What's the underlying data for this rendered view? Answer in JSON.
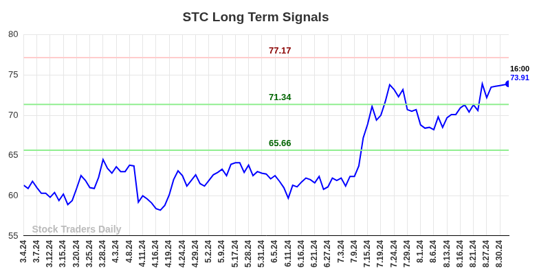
{
  "chart_data": {
    "type": "line",
    "title": "STC Long Term Signals",
    "watermark": "Stock Traders Daily",
    "last_point_label": "16:00",
    "color": "#0000ff",
    "marker": "circle",
    "grid": true,
    "ylim": [
      55,
      80
    ],
    "yticks": [
      55,
      60,
      65,
      70,
      75,
      80
    ],
    "annotations": [
      {
        "value": 77.17,
        "label": "77.17",
        "color": "#ffcccc",
        "text_color": "#8b0000"
      },
      {
        "value": 71.34,
        "label": "71.34",
        "color": "#90ee90",
        "text_color": "#006400"
      },
      {
        "value": 65.66,
        "label": "65.66",
        "color": "#90ee90",
        "text_color": "#006400"
      }
    ],
    "categories": [
      "3.4.24",
      null,
      null,
      "3.7.24",
      null,
      null,
      "3.12.24",
      null,
      null,
      "3.15.24",
      null,
      null,
      "3.20.24",
      null,
      null,
      "3.25.24",
      null,
      null,
      "3.28.24",
      null,
      null,
      "4.3.24",
      null,
      null,
      "4.8.24",
      null,
      null,
      "4.11.24",
      null,
      null,
      "4.16.24",
      null,
      null,
      "4.19.24",
      null,
      null,
      "4.24.24",
      null,
      null,
      "4.29.24",
      null,
      null,
      "5.2.24",
      null,
      null,
      "5.9.24",
      null,
      null,
      "5.17.24",
      null,
      null,
      "5.28.24",
      null,
      null,
      "5.31.24",
      null,
      null,
      "6.5.24",
      null,
      null,
      "6.11.24",
      null,
      null,
      "6.16.24",
      null,
      null,
      "6.21.24",
      null,
      null,
      "6.27.24",
      null,
      null,
      "7.3.24",
      null,
      null,
      "7.9.24",
      null,
      null,
      "7.15.24",
      null,
      null,
      "7.19.24",
      null,
      null,
      "7.24.24",
      null,
      null,
      "7.29.24",
      null,
      null,
      "8.1.24",
      null,
      null,
      "8.6.24",
      null,
      null,
      "8.13.24",
      null,
      null,
      "8.16.24",
      null,
      null,
      "8.21.24",
      null,
      null,
      "8.27.24",
      null,
      null,
      "8.30.24",
      null,
      null
    ],
    "values": [
      61.3,
      60.9,
      61.8,
      61.0,
      60.3,
      60.3,
      59.8,
      60.4,
      59.4,
      60.2,
      58.9,
      59.4,
      60.9,
      62.5,
      61.9,
      61.0,
      60.9,
      62.3,
      64.5,
      63.4,
      62.8,
      63.6,
      63.0,
      63.0,
      63.8,
      63.7,
      59.2,
      60.0,
      59.6,
      59.1,
      58.4,
      58.2,
      58.8,
      60.1,
      62.0,
      63.1,
      62.5,
      61.2,
      61.9,
      62.6,
      61.5,
      61.2,
      61.9,
      62.6,
      62.9,
      63.3,
      62.5,
      63.9,
      64.1,
      64.1,
      62.9,
      63.8,
      62.5,
      63.0,
      62.8,
      62.7,
      62.1,
      62.5,
      61.8,
      61.0,
      59.7,
      61.3,
      61.1,
      61.7,
      62.2,
      62.0,
      61.6,
      62.4,
      60.8,
      61.1,
      62.2,
      61.9,
      62.2,
      61.2,
      62.4,
      62.4,
      63.7,
      67.2,
      68.9,
      71.1,
      69.4,
      70.0,
      71.7,
      73.8,
      73.2,
      72.3,
      73.2,
      70.7,
      70.5,
      70.7,
      68.8,
      68.4,
      68.5,
      68.2,
      69.8,
      68.5,
      69.7,
      70.1,
      70.1,
      70.9,
      71.3,
      70.4,
      71.3,
      70.6,
      73.9,
      72.2,
      73.5,
      73.6,
      73.7,
      73.8,
      73.91
    ]
  }
}
